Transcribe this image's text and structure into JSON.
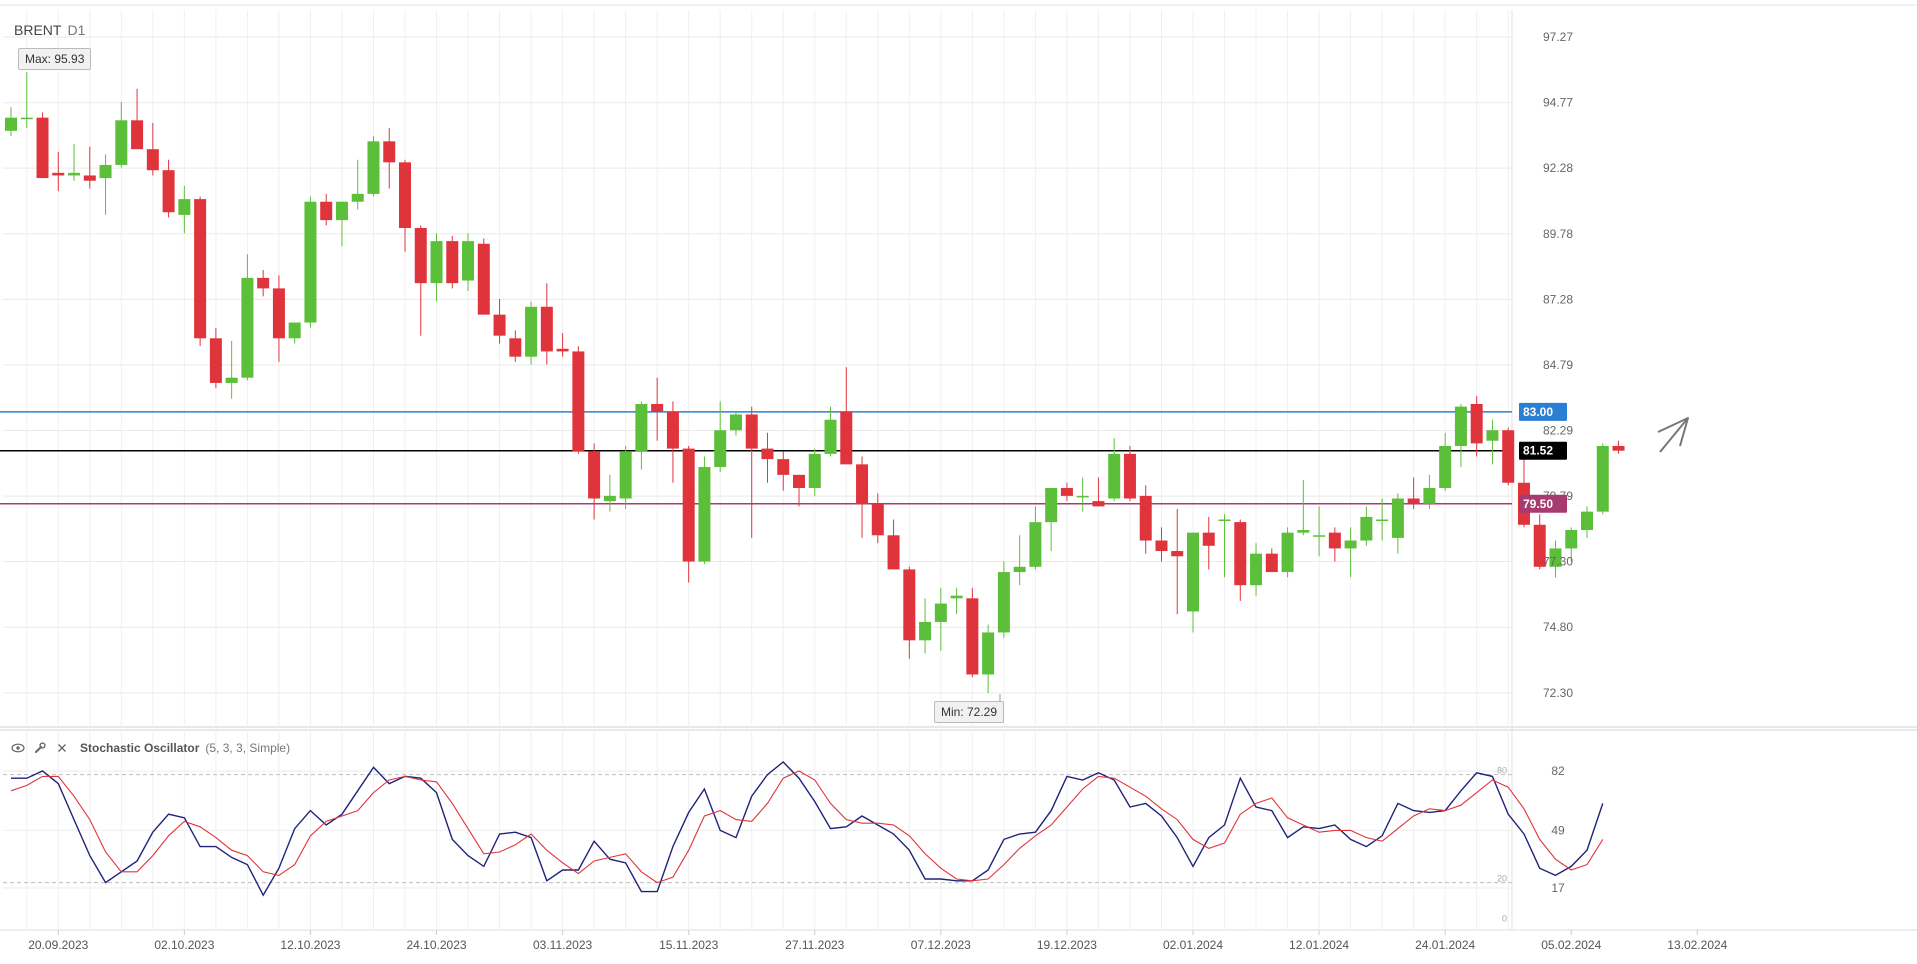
{
  "header": {
    "symbol": "BRENT",
    "timeframe": "D1"
  },
  "annotations": {
    "max_label": "Max: 95.93",
    "min_label": "Min: 72.29"
  },
  "oscillator": {
    "name": "Stochastic Oscillator",
    "params": "(5, 3, 3, Simple)"
  },
  "colors": {
    "up": "#5cbf3a",
    "down": "#e0343c",
    "blue_level": "#2a7fd4",
    "purple_level": "#a83a72",
    "current": "#000000",
    "k_line": "#1f237a",
    "d_line": "#e0343c"
  },
  "chart_data": [
    {
      "type": "candlestick",
      "ylim": [
        71.0,
        98.3
      ],
      "y_ticks": [
        97.27,
        94.77,
        92.28,
        89.78,
        87.28,
        84.79,
        82.29,
        79.79,
        77.3,
        74.8,
        72.3
      ],
      "x_tick_labels": [
        "20.09.2023",
        "02.10.2023",
        "12.10.2023",
        "24.10.2023",
        "03.11.2023",
        "15.11.2023",
        "27.11.2023",
        "07.12.2023",
        "19.12.2023",
        "02.01.2024",
        "12.01.2024",
        "24.01.2024",
        "05.02.2024",
        "13.02.2024"
      ],
      "x_tick_positions": [
        3,
        11,
        19,
        27,
        35,
        43,
        51,
        59,
        67,
        75,
        83,
        91,
        99,
        107
      ],
      "candles": [
        [
          93.7,
          94.6,
          93.5,
          94.2
        ],
        [
          94.2,
          95.93,
          93.8,
          94.2
        ],
        [
          94.2,
          94.4,
          91.9,
          91.9
        ],
        [
          92.1,
          92.9,
          91.4,
          92.0
        ],
        [
          92.0,
          93.2,
          91.8,
          92.1
        ],
        [
          92.0,
          93.1,
          91.5,
          91.8
        ],
        [
          91.9,
          92.8,
          90.5,
          92.4
        ],
        [
          92.4,
          94.8,
          92.3,
          94.1
        ],
        [
          94.1,
          95.3,
          93.1,
          93.0
        ],
        [
          93.0,
          94.0,
          92.0,
          92.2
        ],
        [
          92.2,
          92.6,
          90.4,
          90.6
        ],
        [
          90.5,
          91.6,
          89.8,
          91.1
        ],
        [
          91.1,
          91.2,
          85.5,
          85.8
        ],
        [
          85.8,
          86.2,
          83.9,
          84.1
        ],
        [
          84.1,
          85.7,
          83.5,
          84.3
        ],
        [
          84.3,
          89.0,
          84.2,
          88.1
        ],
        [
          88.1,
          88.4,
          87.4,
          87.7
        ],
        [
          87.7,
          88.2,
          84.9,
          85.8
        ],
        [
          85.8,
          86.4,
          85.6,
          86.4
        ],
        [
          86.4,
          91.2,
          86.2,
          91.0
        ],
        [
          91.0,
          91.3,
          90.1,
          90.3
        ],
        [
          90.3,
          91.0,
          89.3,
          91.0
        ],
        [
          91.0,
          92.6,
          90.7,
          91.3
        ],
        [
          91.3,
          93.5,
          91.2,
          93.3
        ],
        [
          93.3,
          93.8,
          91.5,
          92.5
        ],
        [
          92.5,
          92.6,
          89.1,
          90.0
        ],
        [
          90.0,
          90.1,
          85.9,
          87.9
        ],
        [
          87.9,
          89.8,
          87.2,
          89.5
        ],
        [
          89.5,
          89.7,
          87.7,
          87.9
        ],
        [
          88.0,
          89.8,
          87.6,
          89.5
        ],
        [
          89.4,
          89.6,
          86.9,
          86.7
        ],
        [
          86.7,
          87.3,
          85.6,
          85.9
        ],
        [
          85.8,
          86.1,
          84.9,
          85.1
        ],
        [
          85.1,
          87.2,
          84.8,
          87.0
        ],
        [
          87.0,
          87.9,
          84.8,
          85.3
        ],
        [
          85.4,
          86.0,
          85.1,
          85.3
        ],
        [
          85.3,
          85.5,
          81.4,
          81.5
        ],
        [
          81.5,
          81.8,
          78.9,
          79.7
        ],
        [
          79.6,
          80.6,
          79.2,
          79.8
        ],
        [
          79.7,
          81.7,
          79.3,
          81.5
        ],
        [
          81.5,
          83.4,
          80.8,
          83.3
        ],
        [
          83.3,
          84.3,
          81.9,
          83.0
        ],
        [
          83.0,
          83.4,
          80.3,
          81.6
        ],
        [
          81.6,
          81.7,
          76.5,
          77.3
        ],
        [
          77.3,
          81.3,
          77.2,
          80.9
        ],
        [
          80.9,
          83.4,
          80.7,
          82.3
        ],
        [
          82.3,
          83.0,
          82.1,
          82.9
        ],
        [
          82.9,
          83.2,
          78.2,
          81.6
        ],
        [
          81.6,
          82.2,
          80.3,
          81.2
        ],
        [
          81.2,
          81.5,
          80.0,
          80.6
        ],
        [
          80.6,
          80.6,
          79.4,
          80.1
        ],
        [
          80.1,
          81.6,
          79.8,
          81.4
        ],
        [
          81.4,
          83.2,
          81.3,
          82.7
        ],
        [
          83.0,
          84.7,
          81.2,
          81.0
        ],
        [
          81.0,
          81.3,
          78.2,
          79.5
        ],
        [
          79.5,
          79.9,
          78.0,
          78.3
        ],
        [
          78.3,
          78.9,
          77.2,
          77.0
        ],
        [
          77.0,
          77.1,
          73.6,
          74.3
        ],
        [
          74.3,
          75.9,
          73.8,
          75.0
        ],
        [
          75.0,
          76.3,
          73.9,
          75.7
        ],
        [
          75.9,
          76.3,
          75.3,
          76.0
        ],
        [
          75.9,
          76.3,
          72.9,
          73.0
        ],
        [
          73.0,
          74.9,
          72.29,
          74.6
        ],
        [
          74.6,
          77.3,
          74.4,
          76.9
        ],
        [
          76.9,
          78.3,
          76.4,
          77.1
        ],
        [
          77.1,
          79.4,
          77.0,
          78.8
        ],
        [
          78.8,
          80.1,
          77.7,
          80.1
        ],
        [
          80.1,
          80.3,
          79.6,
          79.8
        ],
        [
          79.8,
          80.5,
          79.2,
          79.8
        ],
        [
          79.6,
          80.5,
          79.4,
          79.4
        ],
        [
          79.7,
          82.0,
          79.6,
          81.4
        ],
        [
          81.4,
          81.7,
          79.6,
          79.7
        ],
        [
          79.8,
          80.2,
          77.6,
          78.1
        ],
        [
          78.1,
          78.6,
          77.3,
          77.7
        ],
        [
          77.7,
          79.3,
          75.3,
          77.5
        ],
        [
          75.4,
          78.4,
          74.6,
          78.4
        ],
        [
          78.4,
          79.0,
          77.0,
          77.9
        ],
        [
          78.9,
          79.1,
          76.7,
          78.9
        ],
        [
          78.8,
          78.9,
          75.8,
          76.4
        ],
        [
          76.4,
          78.0,
          76.0,
          77.6
        ],
        [
          77.6,
          77.8,
          76.9,
          76.9
        ],
        [
          76.9,
          78.6,
          76.7,
          78.4
        ],
        [
          78.4,
          80.4,
          78.3,
          78.5
        ],
        [
          78.3,
          79.4,
          77.5,
          78.3
        ],
        [
          78.4,
          78.6,
          77.3,
          77.8
        ],
        [
          77.8,
          78.6,
          76.7,
          78.1
        ],
        [
          78.1,
          79.4,
          77.9,
          79.0
        ],
        [
          78.9,
          79.7,
          78.1,
          78.9
        ],
        [
          78.2,
          79.9,
          77.6,
          79.7
        ],
        [
          79.7,
          80.5,
          79.3,
          79.5
        ],
        [
          79.5,
          80.6,
          79.3,
          80.1
        ],
        [
          80.1,
          82.2,
          80.0,
          81.7
        ],
        [
          81.7,
          83.3,
          80.9,
          83.2
        ],
        [
          83.3,
          83.6,
          81.3,
          81.8
        ],
        [
          81.9,
          82.7,
          81.0,
          82.3
        ],
        [
          82.3,
          82.4,
          80.2,
          80.3
        ],
        [
          80.3,
          81.7,
          78.6,
          78.7
        ],
        [
          78.7,
          79.1,
          77.0,
          77.1
        ],
        [
          77.1,
          78.1,
          76.7,
          77.8
        ],
        [
          77.8,
          78.6,
          77.3,
          78.5
        ],
        [
          78.5,
          79.4,
          78.2,
          79.2
        ],
        [
          79.2,
          81.8,
          79.1,
          81.7
        ],
        [
          81.7,
          81.9,
          81.4,
          81.52
        ]
      ],
      "levels": [
        {
          "value": 83.0,
          "label": "83.00",
          "color": "#2a7fd4"
        },
        {
          "value": 81.52,
          "label": "81.52",
          "color": "#000000"
        },
        {
          "value": 79.5,
          "label": "79.50",
          "color": "#a83a72"
        }
      ],
      "max": {
        "value": 95.93,
        "index": 1
      },
      "min": {
        "value": 72.29,
        "index": 62
      }
    },
    {
      "type": "line",
      "ylim": [
        0,
        100
      ],
      "y_ticks": [
        82,
        49,
        17
      ],
      "reference_lines": [
        80,
        20
      ],
      "reference_labels": [
        "80",
        "20",
        "0"
      ],
      "series": [
        {
          "values": [
            78,
            78,
            82,
            75,
            55,
            35,
            20,
            26,
            32,
            48,
            58,
            56,
            40,
            40,
            34,
            30,
            13,
            28,
            50,
            60,
            52,
            58,
            71,
            84,
            75,
            79,
            78,
            70,
            44,
            35,
            29,
            47,
            48,
            45,
            21,
            27,
            27,
            43,
            33,
            31,
            15,
            15,
            40,
            59,
            72,
            49,
            45,
            68,
            80,
            87,
            78,
            65,
            50,
            51,
            57,
            52,
            47,
            38,
            22,
            22,
            21,
            21,
            27,
            44,
            47,
            48,
            60,
            79,
            77,
            81,
            77,
            62,
            64,
            57,
            45,
            29,
            45,
            52,
            78,
            62,
            60,
            45,
            51,
            50,
            52,
            44,
            40,
            46,
            64,
            60,
            59,
            60,
            71,
            81,
            79,
            58,
            47,
            28,
            24,
            29,
            38,
            64
          ]
        },
        {
          "values": [
            71,
            74,
            79,
            79,
            68,
            55,
            37,
            26,
            26,
            35,
            46,
            54,
            51,
            45,
            38,
            35,
            26,
            24,
            30,
            46,
            54,
            57,
            60,
            70,
            77,
            79,
            77,
            76,
            64,
            50,
            36,
            37,
            41,
            47,
            38,
            31,
            25,
            32,
            34,
            36,
            26,
            20,
            23,
            38,
            57,
            60,
            55,
            54,
            64,
            78,
            82,
            77,
            64,
            55,
            53,
            53,
            52,
            46,
            36,
            28,
            22,
            21,
            22,
            30,
            39,
            46,
            52,
            62,
            72,
            79,
            78,
            73,
            68,
            61,
            55,
            44,
            39,
            42,
            58,
            64,
            67,
            56,
            52,
            48,
            49,
            49,
            45,
            43,
            50,
            57,
            61,
            60,
            63,
            70,
            77,
            73,
            61,
            44,
            33,
            27,
            30,
            44
          ]
        }
      ]
    }
  ]
}
